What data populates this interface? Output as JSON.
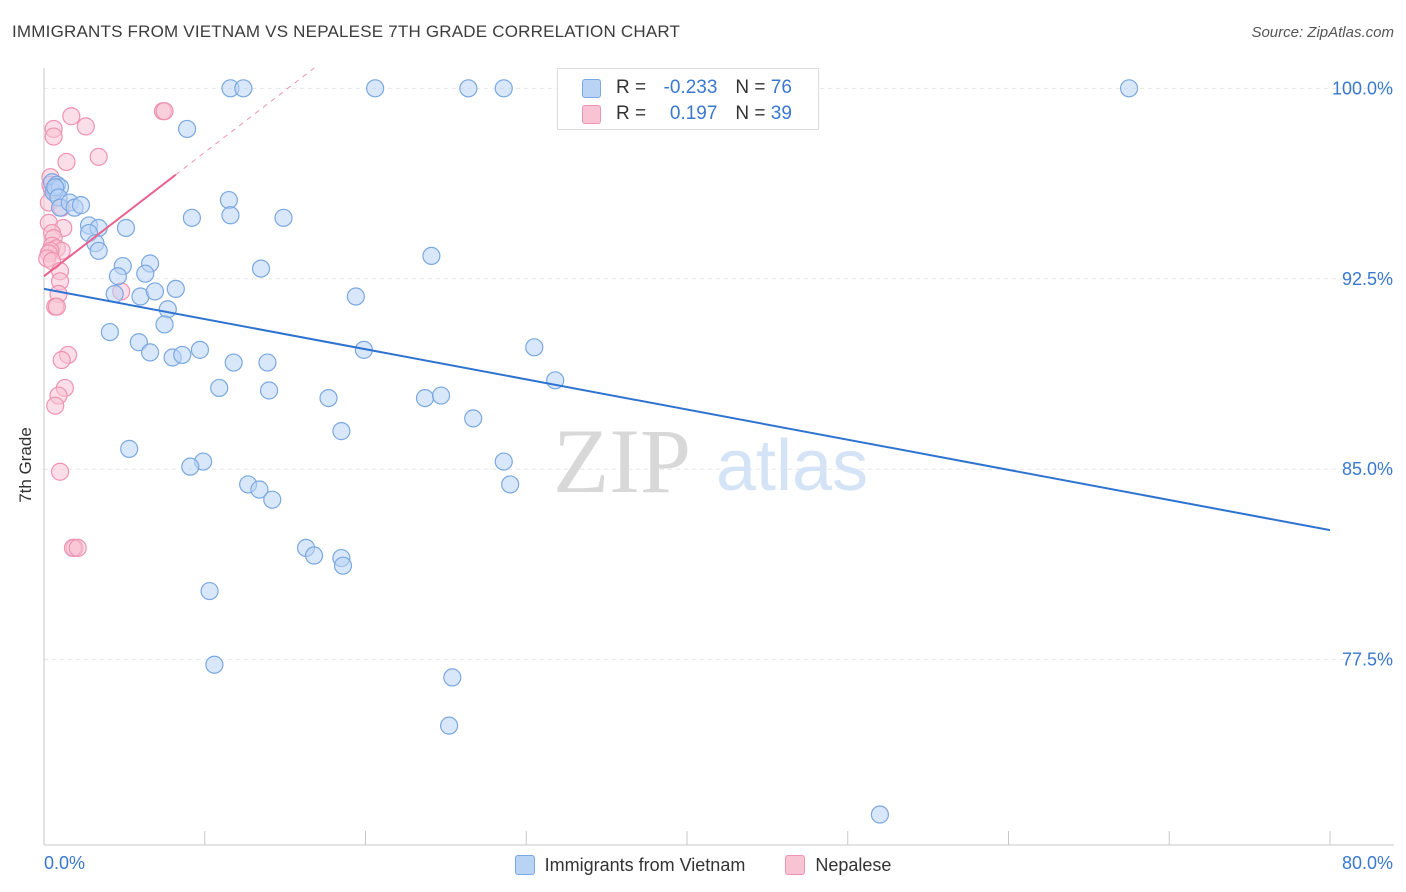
{
  "header": {
    "title": "IMMIGRANTS FROM VIETNAM VS NEPALESE 7TH GRADE CORRELATION CHART",
    "source": "Source: ZipAtlas.com"
  },
  "watermark": {
    "zip": "ZIP",
    "atlas": "atlas"
  },
  "colors": {
    "blue_fill": "#b9d3f5",
    "blue_stroke": "#7aa8e0",
    "blue_line": "#2f73d1",
    "pink_fill": "#f8c3d3",
    "pink_stroke": "#ee93b1",
    "pink_line": "#e8628e",
    "tick_label": "#3a78cf",
    "grid": "#e6e6e6"
  },
  "stats_legend": {
    "rows": [
      {
        "r_label": "R =",
        "r_value": "-0.233",
        "n_label": "N =",
        "n_value": "76"
      },
      {
        "r_label": "R =",
        "r_value": "0.197",
        "n_label": "N =",
        "n_value": "39"
      }
    ]
  },
  "chart_data": {
    "type": "scatter",
    "title": "IMMIGRANTS FROM VIETNAM VS NEPALESE 7TH GRADE CORRELATION CHART",
    "xlabel": "",
    "ylabel": "7th Grade",
    "xlim": [
      0,
      80
    ],
    "ylim": [
      70.2,
      100.8
    ],
    "x_tick_labels": [
      "0.0%",
      "80.0%"
    ],
    "y_ticks": [
      77.5,
      85.0,
      92.5,
      100.0
    ],
    "y_tick_labels": [
      "77.5%",
      "85.0%",
      "92.5%",
      "100.0%"
    ],
    "grid": true,
    "legend_position": "bottom-center",
    "series": [
      {
        "name": "Immigrants from Vietnam",
        "color": "#7aa8e0",
        "r": -0.233,
        "n": 76,
        "trend": {
          "x0": 0,
          "y0": 92.1,
          "x1": 80,
          "y1": 82.6
        },
        "points": [
          [
            0.5,
            96.3
          ],
          [
            0.7,
            96.0
          ],
          [
            0.8,
            96.2
          ],
          [
            0.6,
            95.9
          ],
          [
            1.0,
            96.1
          ],
          [
            0.7,
            96.1
          ],
          [
            0.9,
            95.7
          ],
          [
            1.0,
            95.3
          ],
          [
            1.6,
            95.5
          ],
          [
            1.9,
            95.3
          ],
          [
            2.3,
            95.4
          ],
          [
            2.8,
            94.6
          ],
          [
            3.4,
            94.5
          ],
          [
            2.8,
            94.3
          ],
          [
            5.1,
            94.5
          ],
          [
            3.2,
            93.9
          ],
          [
            3.4,
            93.6
          ],
          [
            4.9,
            93.0
          ],
          [
            4.6,
            92.6
          ],
          [
            4.4,
            91.9
          ],
          [
            6.6,
            93.1
          ],
          [
            6.3,
            92.7
          ],
          [
            6.0,
            91.8
          ],
          [
            6.9,
            92.0
          ],
          [
            8.2,
            92.1
          ],
          [
            7.7,
            91.3
          ],
          [
            7.5,
            90.7
          ],
          [
            4.1,
            90.4
          ],
          [
            5.9,
            90.0
          ],
          [
            6.6,
            89.6
          ],
          [
            8.0,
            89.4
          ],
          [
            8.6,
            89.5
          ],
          [
            9.7,
            89.7
          ],
          [
            11.8,
            89.2
          ],
          [
            13.9,
            89.2
          ],
          [
            10.9,
            88.2
          ],
          [
            14.0,
            88.1
          ],
          [
            17.7,
            87.8
          ],
          [
            11.5,
            95.6
          ],
          [
            11.6,
            95.0
          ],
          [
            9.2,
            94.9
          ],
          [
            14.9,
            94.9
          ],
          [
            8.9,
            98.4
          ],
          [
            11.6,
            100.0
          ],
          [
            20.6,
            100.0
          ],
          [
            26.4,
            100.0
          ],
          [
            28.6,
            100.0
          ],
          [
            67.5,
            100.0
          ],
          [
            12.4,
            100.0
          ],
          [
            13.5,
            92.9
          ],
          [
            19.4,
            91.8
          ],
          [
            19.9,
            89.7
          ],
          [
            24.1,
            93.4
          ],
          [
            30.5,
            89.8
          ],
          [
            31.8,
            88.5
          ],
          [
            23.7,
            87.8
          ],
          [
            24.7,
            87.9
          ],
          [
            26.7,
            87.0
          ],
          [
            18.5,
            86.5
          ],
          [
            5.3,
            85.8
          ],
          [
            9.9,
            85.3
          ],
          [
            9.1,
            85.1
          ],
          [
            28.6,
            85.3
          ],
          [
            29.0,
            84.4
          ],
          [
            12.7,
            84.4
          ],
          [
            13.4,
            84.2
          ],
          [
            14.2,
            83.8
          ],
          [
            16.3,
            81.9
          ],
          [
            16.8,
            81.6
          ],
          [
            18.5,
            81.5
          ],
          [
            18.6,
            81.2
          ],
          [
            10.3,
            80.2
          ],
          [
            10.6,
            77.3
          ],
          [
            25.4,
            76.8
          ],
          [
            25.2,
            74.9
          ],
          [
            52.0,
            71.4
          ]
        ]
      },
      {
        "name": "Nepalese",
        "color": "#ee93b1",
        "r": 0.197,
        "n": 39,
        "trend": {
          "x0": 0,
          "y0": 92.6,
          "x1": 8.2,
          "y1": 96.6
        },
        "points": [
          [
            1.7,
            98.9
          ],
          [
            7.4,
            99.1
          ],
          [
            7.5,
            99.1
          ],
          [
            2.6,
            98.5
          ],
          [
            0.6,
            98.4
          ],
          [
            0.6,
            98.1
          ],
          [
            3.4,
            97.3
          ],
          [
            1.4,
            97.1
          ],
          [
            0.4,
            96.5
          ],
          [
            0.4,
            96.2
          ],
          [
            0.5,
            96.0
          ],
          [
            0.3,
            95.5
          ],
          [
            1.1,
            95.3
          ],
          [
            0.3,
            94.7
          ],
          [
            1.2,
            94.5
          ],
          [
            0.5,
            94.3
          ],
          [
            0.6,
            94.1
          ],
          [
            0.5,
            93.8
          ],
          [
            0.8,
            93.7
          ],
          [
            1.1,
            93.6
          ],
          [
            0.4,
            93.6
          ],
          [
            0.3,
            93.5
          ],
          [
            0.2,
            93.3
          ],
          [
            0.5,
            93.2
          ],
          [
            1.0,
            92.8
          ],
          [
            1.0,
            92.4
          ],
          [
            0.9,
            91.9
          ],
          [
            4.8,
            92.0
          ],
          [
            0.7,
            91.4
          ],
          [
            0.8,
            91.4
          ],
          [
            1.5,
            89.5
          ],
          [
            1.1,
            89.3
          ],
          [
            1.3,
            88.2
          ],
          [
            0.9,
            87.9
          ],
          [
            0.7,
            87.5
          ],
          [
            1.0,
            84.9
          ],
          [
            1.9,
            81.9
          ],
          [
            1.8,
            81.9
          ],
          [
            2.1,
            81.9
          ]
        ]
      }
    ]
  }
}
